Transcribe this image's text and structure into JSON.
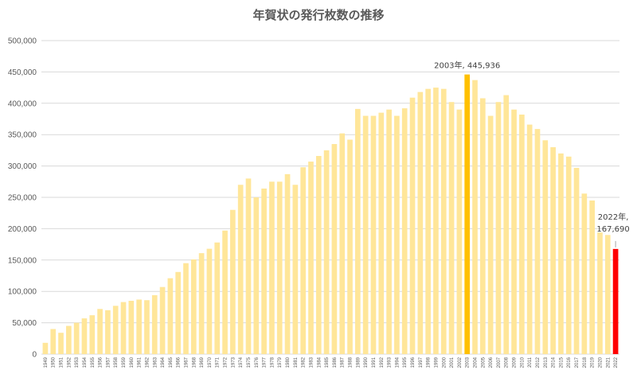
{
  "chart_data": {
    "type": "bar",
    "title": "年賀状の発行枚数の推移",
    "xlabel": "",
    "ylabel": "",
    "ylim": [
      0,
      500000
    ],
    "yticks": [
      0,
      50000,
      100000,
      150000,
      200000,
      250000,
      300000,
      350000,
      400000,
      450000,
      500000
    ],
    "ytick_labels": [
      "0",
      "50,000",
      "100,000",
      "150,000",
      "200,000",
      "250,000",
      "300,000",
      "350,000",
      "400,000",
      "450,000",
      "500,000"
    ],
    "grid": true,
    "colors": {
      "default": "#FFE699",
      "highlight_max": "#FFC000",
      "highlight_last": "#FF0000",
      "grid": "#D9D9D9",
      "text": "#595959"
    },
    "categories": [
      "1949",
      "1950",
      "1951",
      "1952",
      "1953",
      "1954",
      "1955",
      "1956",
      "1957",
      "1958",
      "1959",
      "1960",
      "1961",
      "1962",
      "1963",
      "1964",
      "1965",
      "1966",
      "1967",
      "1968",
      "1969",
      "1970",
      "1971",
      "1972",
      "1973",
      "1974",
      "1975",
      "1976",
      "1977",
      "1978",
      "1979",
      "1980",
      "1981",
      "1982",
      "1983",
      "1984",
      "1985",
      "1986",
      "1987",
      "1988",
      "1989",
      "1990",
      "1991",
      "1992",
      "1993",
      "1994",
      "1995",
      "1996",
      "1997",
      "1998",
      "1999",
      "2000",
      "2001",
      "2002",
      "2003",
      "2004",
      "2005",
      "2006",
      "2007",
      "2008",
      "2009",
      "2010",
      "2011",
      "2012",
      "2013",
      "2014",
      "2015",
      "2016",
      "2017",
      "2018",
      "2019",
      "2020",
      "2021",
      "2022"
    ],
    "values": [
      18000,
      40000,
      34000,
      45000,
      50000,
      57000,
      62000,
      72000,
      70000,
      77000,
      83000,
      85000,
      87000,
      86000,
      94000,
      107000,
      121000,
      131000,
      145000,
      151000,
      161000,
      168000,
      178000,
      197000,
      230000,
      270000,
      280000,
      250000,
      264000,
      275000,
      275000,
      287000,
      270000,
      298000,
      307000,
      316000,
      325000,
      335000,
      352000,
      342000,
      391000,
      380000,
      380000,
      385000,
      390000,
      380000,
      392000,
      409000,
      418000,
      423000,
      425000,
      423000,
      402000,
      390000,
      445936,
      437000,
      408000,
      380000,
      402000,
      413000,
      390000,
      382000,
      366000,
      359000,
      341000,
      330000,
      320000,
      315000,
      297000,
      256000,
      245000,
      194000,
      190000,
      167690
    ],
    "highlights": {
      "max_index": 54,
      "last_index": 73
    },
    "annotations": [
      {
        "index": 54,
        "lines": [
          "2003年, 445,936"
        ]
      },
      {
        "index": 73,
        "lines": [
          "2022年,",
          "167,690"
        ]
      }
    ]
  }
}
